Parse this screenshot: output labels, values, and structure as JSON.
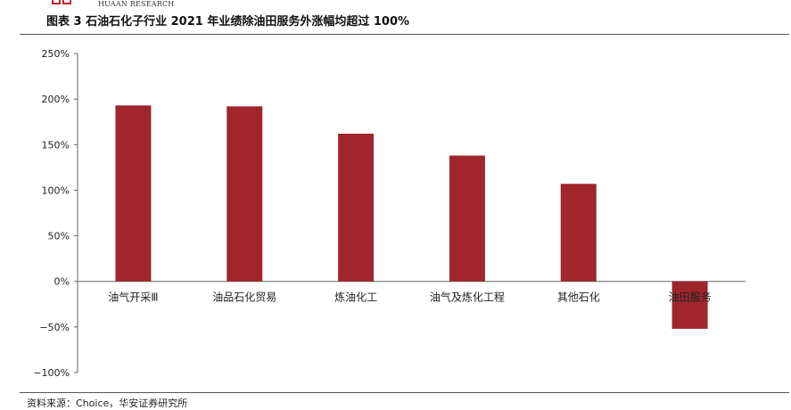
{
  "header": {
    "brand": "HUAAN RESEARCH",
    "title": "图表 3 石油石化子行业 2021 年业绩除油田服务外涨幅均超过 100%"
  },
  "footer": {
    "source": "资料来源：Choice，华安证券研究所"
  },
  "colors": {
    "bar": "#a0252c",
    "brand": "#c0282d"
  },
  "chart_data": {
    "type": "bar",
    "categories": [
      "油气开采Ⅲ",
      "油品石化贸易",
      "炼油化工",
      "油气及炼化工程",
      "其他石化",
      "油田服务"
    ],
    "values": [
      193,
      192,
      162,
      138,
      107,
      -52
    ],
    "unit": "%",
    "ylim": [
      -100,
      250
    ],
    "yticks": [
      "250%",
      "200%",
      "150%",
      "100%",
      "50%",
      "0%",
      "−50%",
      "−100%"
    ],
    "ytick_values": [
      250,
      200,
      150,
      100,
      50,
      0,
      -50,
      -100
    ],
    "grid": false,
    "legend": "none"
  }
}
